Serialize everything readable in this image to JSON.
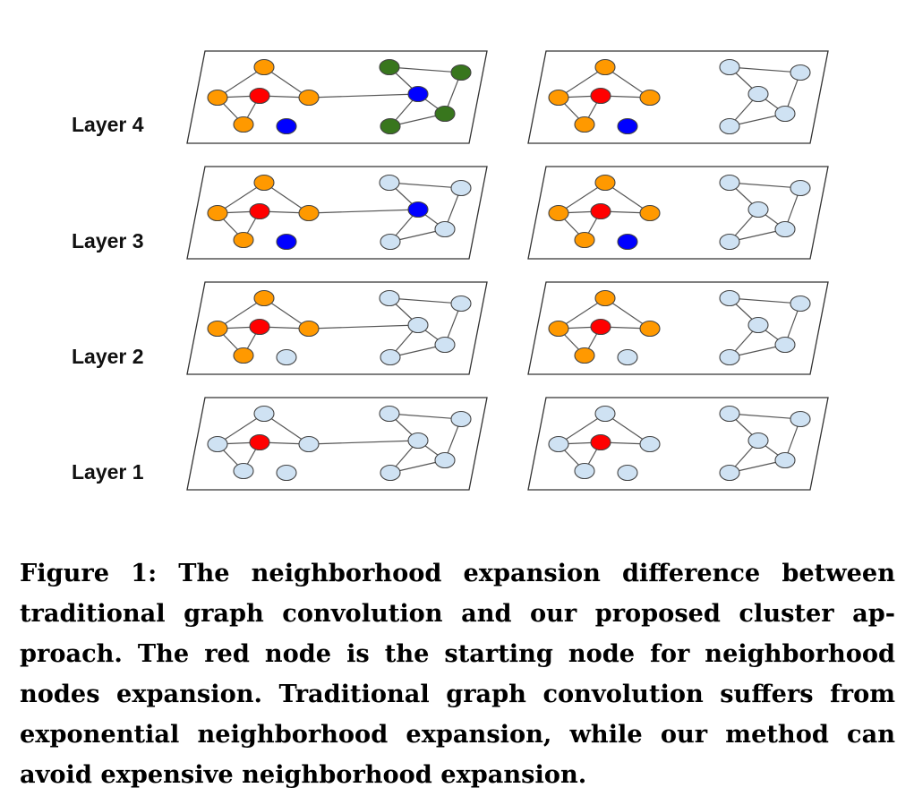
{
  "figure": {
    "layer_labels": [
      "Layer 4",
      "Layer 3",
      "Layer 2",
      "Layer 1"
    ],
    "colors": {
      "red": "#ff0000",
      "orange": "#ff9900",
      "blue": "#0000ff",
      "green": "#38761d",
      "light": "#cfe2f3",
      "stroke": "#000000"
    },
    "panels": {
      "left_column": [
        {
          "layer": "Layer 4",
          "colors": [
            "orange",
            "red",
            "orange",
            "orange",
            "orange",
            "blue",
            "green",
            "green",
            "blue",
            "green",
            "green"
          ]
        },
        {
          "layer": "Layer 3",
          "colors": [
            "orange",
            "red",
            "orange",
            "orange",
            "orange",
            "blue",
            "light",
            "light",
            "blue",
            "light",
            "light"
          ]
        },
        {
          "layer": "Layer 2",
          "colors": [
            "orange",
            "red",
            "orange",
            "orange",
            "orange",
            "light",
            "light",
            "light",
            "light",
            "light",
            "light"
          ]
        },
        {
          "layer": "Layer 1",
          "colors": [
            "light",
            "red",
            "light",
            "light",
            "light",
            "light",
            "light",
            "light",
            "light",
            "light",
            "light"
          ]
        }
      ],
      "right_column": [
        {
          "layer": "Layer 4",
          "colors": [
            "orange",
            "red",
            "orange",
            "orange",
            "orange",
            "blue",
            "light",
            "light",
            "light",
            "light",
            "light"
          ]
        },
        {
          "layer": "Layer 3",
          "colors": [
            "orange",
            "red",
            "orange",
            "orange",
            "orange",
            "blue",
            "light",
            "light",
            "light",
            "light",
            "light"
          ]
        },
        {
          "layer": "Layer 2",
          "colors": [
            "orange",
            "red",
            "orange",
            "orange",
            "orange",
            "light",
            "light",
            "light",
            "light",
            "light",
            "light"
          ]
        },
        {
          "layer": "Layer 1",
          "colors": [
            "light",
            "red",
            "light",
            "light",
            "light",
            "light",
            "light",
            "light",
            "light",
            "light",
            "light"
          ]
        }
      ]
    }
  },
  "caption": {
    "text": "Figure 1: The neighborhood expansion difference between traditional graph convolution and our proposed cluster ap­proach. The red node is the starting node for neighbor­hood nodes expansion. Traditional graph convolution suf­fers from exponential neighborhood expansion, while our method can avoid expensive neighborhood expansion."
  }
}
